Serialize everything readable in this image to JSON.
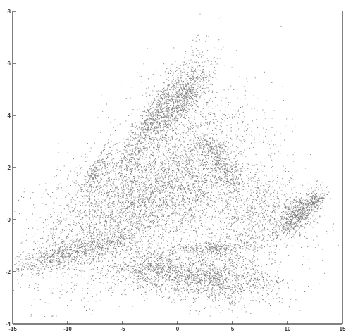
{
  "chart_data": {
    "type": "scatter",
    "title": "",
    "xlabel": "",
    "ylabel": "",
    "xlim": [
      -15,
      15
    ],
    "ylim": [
      -4,
      8
    ],
    "xticks": [
      -15,
      -10,
      -5,
      0,
      5,
      10,
      15
    ],
    "yticks": [
      -4,
      -2,
      0,
      2,
      4,
      6,
      8
    ],
    "xtick_labels": [
      "-15",
      "-10",
      "-5",
      "0",
      "5",
      "10",
      "15"
    ],
    "ytick_labels": [
      "-4",
      "-2",
      "0",
      "2",
      "4",
      "6",
      "8"
    ],
    "grid": false,
    "legend": "none",
    "point_color": "#7a7a7a",
    "series": [
      {
        "density_clusters": [
          {
            "cx": -6.0,
            "cy": 0.2,
            "sx": 3.8,
            "sy": 1.3,
            "n": 2600,
            "rot": 0.18
          },
          {
            "cx": -10.0,
            "cy": -1.3,
            "sx": 3.0,
            "sy": 0.25,
            "n": 900,
            "rot": 0.1
          },
          {
            "cx": -2.0,
            "cy": 4.0,
            "sx": 2.3,
            "sy": 0.4,
            "n": 1100,
            "rot": 0.55
          },
          {
            "cx": 0.5,
            "cy": 4.6,
            "sx": 1.4,
            "sy": 0.35,
            "n": 800,
            "rot": 0.45
          },
          {
            "cx": -7.5,
            "cy": 1.8,
            "sx": 0.9,
            "sy": 0.25,
            "n": 260,
            "rot": 0.6
          },
          {
            "cx": -1.0,
            "cy": 1.0,
            "sx": 3.0,
            "sy": 1.1,
            "n": 1700,
            "rot": 0.2
          },
          {
            "cx": 4.0,
            "cy": 2.2,
            "sx": 1.2,
            "sy": 0.3,
            "n": 420,
            "rot": -0.4
          },
          {
            "cx": 3.0,
            "cy": -2.3,
            "sx": 3.2,
            "sy": 0.45,
            "n": 1500,
            "rot": -0.05
          },
          {
            "cx": -2.0,
            "cy": -1.9,
            "sx": 2.0,
            "sy": 0.35,
            "n": 700,
            "rot": 0.05
          },
          {
            "cx": 3.0,
            "cy": -1.1,
            "sx": 1.6,
            "sy": 0.12,
            "n": 300,
            "rot": 0.0
          },
          {
            "cx": 10.8,
            "cy": 0.2,
            "sx": 0.9,
            "sy": 0.3,
            "n": 650,
            "rot": 0.3
          },
          {
            "cx": 12.5,
            "cy": 0.7,
            "sx": 0.5,
            "sy": 0.2,
            "n": 220,
            "rot": 0.4
          },
          {
            "cx": 7.0,
            "cy": 0.6,
            "sx": 3.0,
            "sy": 0.9,
            "n": 900,
            "rot": -0.1
          },
          {
            "cx": 2.0,
            "cy": 2.5,
            "sx": 3.5,
            "sy": 1.6,
            "n": 1300,
            "rot": 0.0
          },
          {
            "cx": 6.0,
            "cy": -0.8,
            "sx": 2.5,
            "sy": 0.8,
            "n": 600,
            "rot": 0.3
          }
        ]
      }
    ]
  }
}
